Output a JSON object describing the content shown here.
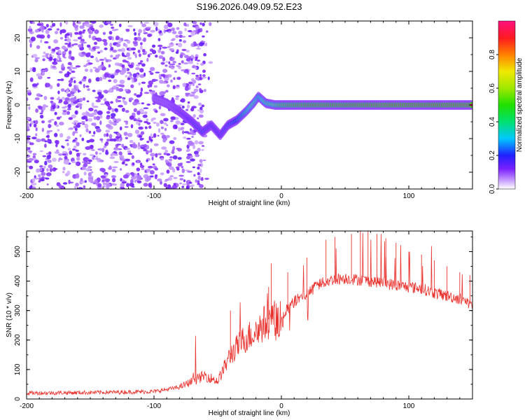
{
  "title": "S196.2026.049.09.52.E23",
  "chart_data": [
    {
      "type": "heatmap",
      "title": "S196.2026.049.09.52.E23",
      "xlabel": "Height of straight line (km)",
      "ylabel": "Frequency (Hz)",
      "xlim": [
        -200,
        150
      ],
      "ylim": [
        -25,
        25
      ],
      "xticks": [
        -200,
        -100,
        0,
        100
      ],
      "yticks": [
        -20,
        -10,
        0,
        10,
        20
      ],
      "colorbar": {
        "label": "Normalized spectral amplitude",
        "range": [
          0,
          1
        ],
        "ticks": [
          0.0,
          0.2,
          0.4,
          0.6,
          0.8
        ],
        "tick_labels": [
          "0.0",
          "0.2",
          "0.4",
          "0.6",
          "0.8"
        ]
      },
      "ridge": [
        {
          "x": -100,
          "y": 2.0,
          "amp": 0.15
        },
        {
          "x": -90,
          "y": 0.5,
          "amp": 0.15
        },
        {
          "x": -80,
          "y": -2.0,
          "amp": 0.2
        },
        {
          "x": -70,
          "y": -5.0,
          "amp": 0.25
        },
        {
          "x": -62,
          "y": -8.0,
          "amp": 0.3
        },
        {
          "x": -55,
          "y": -6.0,
          "amp": 0.25
        },
        {
          "x": -48,
          "y": -9.0,
          "amp": 0.25
        },
        {
          "x": -42,
          "y": -6.0,
          "amp": 0.3
        },
        {
          "x": -35,
          "y": -4.5,
          "amp": 0.4
        },
        {
          "x": -28,
          "y": -2.0,
          "amp": 0.55
        },
        {
          "x": -22,
          "y": 0.5,
          "amp": 0.65
        },
        {
          "x": -18,
          "y": 2.5,
          "amp": 0.55
        },
        {
          "x": -12,
          "y": 0.5,
          "amp": 0.65
        },
        {
          "x": -5,
          "y": 0.0,
          "amp": 0.7
        },
        {
          "x": 0,
          "y": 0.0,
          "amp": 0.8
        },
        {
          "x": 20,
          "y": 0.0,
          "amp": 0.9
        },
        {
          "x": 60,
          "y": 0.0,
          "amp": 0.95
        },
        {
          "x": 100,
          "y": 0.0,
          "amp": 1.0
        },
        {
          "x": 150,
          "y": 0.0,
          "amp": 1.0
        }
      ]
    },
    {
      "type": "line",
      "xlabel": "Height of straight line (km)",
      "ylabel": "SNR (10 * v/v)",
      "xlim": [
        -200,
        150
      ],
      "ylim": [
        0,
        570
      ],
      "xticks": [
        -200,
        -100,
        0,
        100
      ],
      "yticks": [
        0,
        100,
        200,
        300,
        400,
        500
      ],
      "series": [
        {
          "name": "SNR",
          "color": "#e8322e",
          "envelope": {
            "x": [
              -200,
              -150,
              -100,
              -80,
              -70,
              -60,
              -50,
              -40,
              -30,
              -20,
              -10,
              0,
              10,
              20,
              30,
              40,
              50,
              60,
              70,
              80,
              90,
              100,
              110,
              120,
              130,
              140,
              150
            ],
            "y": [
              20,
              22,
              25,
              40,
              60,
              80,
              60,
              150,
              200,
              230,
              270,
              280,
              330,
              360,
              390,
              405,
              410,
              405,
              400,
              395,
              385,
              380,
              375,
              360,
              350,
              340,
              320
            ]
          },
          "spikes": [
            {
              "x": -40,
              "y": 300
            },
            {
              "x": -8,
              "y": 460
            },
            {
              "x": -10,
              "y": 380
            },
            {
              "x": 5,
              "y": 430
            },
            {
              "x": 20,
              "y": 480
            },
            {
              "x": 35,
              "y": 540
            },
            {
              "x": 42,
              "y": 550
            },
            {
              "x": 55,
              "y": 560
            },
            {
              "x": 62,
              "y": 570
            },
            {
              "x": 68,
              "y": 570
            },
            {
              "x": 75,
              "y": 560
            },
            {
              "x": 82,
              "y": 545
            },
            {
              "x": 90,
              "y": 530
            },
            {
              "x": 100,
              "y": 500
            },
            {
              "x": 110,
              "y": 490
            },
            {
              "x": 120,
              "y": 470
            },
            {
              "x": 130,
              "y": 450
            },
            {
              "x": 140,
              "y": 430
            },
            {
              "x": 148,
              "y": 420
            }
          ]
        }
      ]
    }
  ]
}
